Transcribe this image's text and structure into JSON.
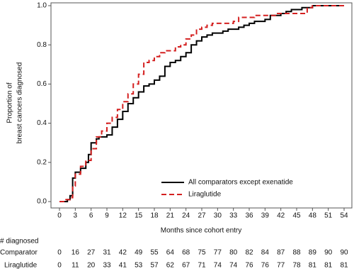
{
  "chart_data": {
    "type": "step",
    "ylabel": [
      "Proportion of",
      "breast cancers diagnosed"
    ],
    "xlabel": "Months since cohort entry",
    "xlim": [
      0,
      54
    ],
    "xticks": [
      0,
      3,
      6,
      9,
      12,
      15,
      18,
      21,
      24,
      27,
      30,
      33,
      36,
      39,
      42,
      45,
      48,
      51,
      54
    ],
    "ylim": [
      0,
      1
    ],
    "yticks": [
      {
        "value": 0,
        "label": "0.0"
      },
      0.2,
      0.4,
      0.6,
      0.8,
      {
        "value": 1,
        "label": "1.0"
      }
    ],
    "legend": "lower right",
    "series": [
      {
        "name": "All comparators except exenatide",
        "color": "#000000",
        "dash": "solid",
        "x": [
          0,
          1.5,
          2,
          2.5,
          3,
          4,
          5,
          5.5,
          6,
          7,
          7.5,
          9,
          10,
          11,
          12,
          13,
          14,
          15,
          16,
          17,
          18,
          19,
          20,
          21,
          22,
          23,
          24,
          25,
          26,
          27,
          28,
          29,
          31,
          32,
          34,
          35,
          36,
          37,
          39,
          40,
          42,
          43,
          44,
          46,
          48,
          54
        ],
        "values": [
          0,
          0.01,
          0.03,
          0.12,
          0.15,
          0.17,
          0.2,
          0.24,
          0.3,
          0.32,
          0.33,
          0.34,
          0.38,
          0.42,
          0.46,
          0.5,
          0.53,
          0.56,
          0.59,
          0.6,
          0.62,
          0.64,
          0.69,
          0.71,
          0.72,
          0.74,
          0.76,
          0.8,
          0.82,
          0.84,
          0.85,
          0.86,
          0.87,
          0.88,
          0.89,
          0.9,
          0.91,
          0.92,
          0.93,
          0.95,
          0.96,
          0.97,
          0.98,
          0.99,
          1,
          1
        ]
      },
      {
        "name": "Liraglutide",
        "color": "#d42020",
        "dash": "dashed",
        "x": [
          0,
          1,
          2,
          2.5,
          3,
          4,
          5,
          6,
          7,
          8,
          9,
          10,
          11,
          12,
          13,
          14,
          15,
          16,
          17,
          18,
          19,
          20,
          22,
          23,
          24,
          25,
          26,
          27,
          28,
          29,
          33,
          34,
          37,
          41,
          47,
          48,
          54
        ],
        "values": [
          0,
          0.01,
          0.02,
          0.08,
          0.14,
          0.18,
          0.21,
          0.27,
          0.33,
          0.36,
          0.4,
          0.43,
          0.47,
          0.51,
          0.55,
          0.6,
          0.65,
          0.71,
          0.72,
          0.74,
          0.76,
          0.77,
          0.79,
          0.8,
          0.83,
          0.85,
          0.88,
          0.89,
          0.9,
          0.91,
          0.92,
          0.94,
          0.95,
          0.96,
          0.99,
          1,
          1
        ]
      }
    ],
    "table": {
      "title": "# diagnosed",
      "rows": [
        {
          "label": "Comparator",
          "values": [
            0,
            16,
            27,
            31,
            42,
            49,
            55,
            64,
            68,
            75,
            77,
            80,
            82,
            84,
            87,
            88,
            89,
            90,
            90
          ]
        },
        {
          "label": "Liraglutide",
          "values": [
            0,
            11,
            20,
            33,
            41,
            53,
            57,
            62,
            67,
            71,
            74,
            74,
            76,
            76,
            77,
            78,
            81,
            81,
            81
          ]
        }
      ]
    }
  }
}
